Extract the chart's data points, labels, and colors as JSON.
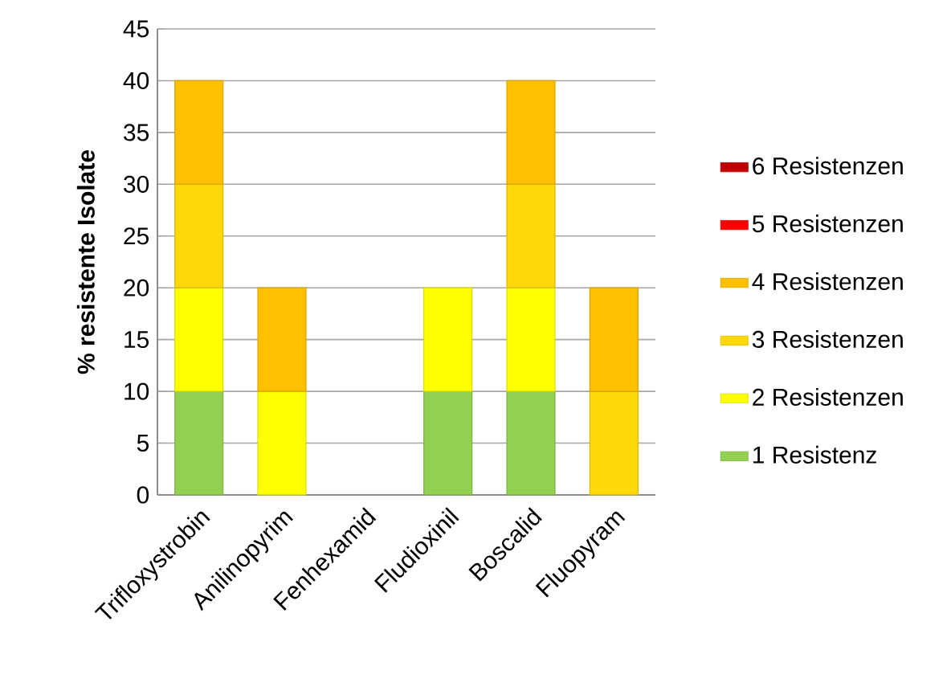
{
  "chart_data": {
    "type": "bar",
    "stacked": true,
    "ylabel": "% resistente Isolate",
    "categories": [
      "Trifloxystrobin",
      "Anilinopyrim",
      "Fenhexamid",
      "Fludioxinil",
      "Boscalid",
      "Fluopyram"
    ],
    "series": [
      {
        "name": "1 Resistenz",
        "color": "#92d050",
        "values": [
          10,
          0,
          0,
          10,
          10,
          0
        ]
      },
      {
        "name": "2 Resistenzen",
        "color": "#ffff00",
        "values": [
          10,
          10,
          0,
          10,
          10,
          0
        ]
      },
      {
        "name": "3 Resistenzen",
        "color": "#ffd80a",
        "values": [
          10,
          0,
          0,
          0,
          10,
          10
        ]
      },
      {
        "name": "4 Resistenzen",
        "color": "#ffc000",
        "values": [
          10,
          10,
          0,
          0,
          10,
          10
        ]
      },
      {
        "name": "5 Resistenzen",
        "color": "#ff0000",
        "values": [
          0,
          0,
          0,
          0,
          0,
          0
        ]
      },
      {
        "name": "6 Resistenzen",
        "color": "#c00000",
        "values": [
          0,
          0,
          0,
          0,
          0,
          0
        ]
      }
    ],
    "ylim": [
      0,
      45
    ],
    "yticks": [
      0,
      5,
      10,
      15,
      20,
      25,
      30,
      35,
      40,
      45
    ],
    "grid": "y",
    "legend": "right"
  }
}
